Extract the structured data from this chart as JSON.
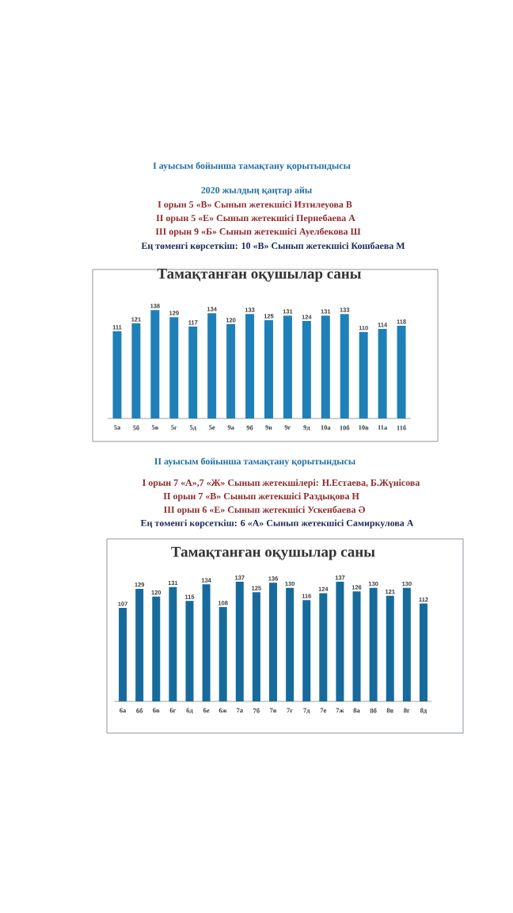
{
  "chart_data": [
    {
      "type": "bar",
      "title": "Тамақтанған оқушылар саны",
      "annotations": [
        "I ауысым бойынша тамақтану қорытындысы",
        "2020 жылдың қаңтар айы",
        "I орын 5 «В» Сынып жетекшісі Изтилеуова В",
        "II орын 5 «Е» Сынып жетекшісі Пернебаева А",
        "III орын 9 «Б» Сынып жетекшісі Ауелбекова Ш",
        "Ең төменгі көрсеткіш: 10 «В» Сынып жетекшісі Кошбаева М"
      ],
      "categories": [
        "5а",
        "5б",
        "5в",
        "5г",
        "5д",
        "5е",
        "9а",
        "9б",
        "9в",
        "9г",
        "9д",
        "10а",
        "10б",
        "10в",
        "11а",
        "11б"
      ],
      "values": [
        111,
        121,
        138,
        129,
        117,
        134,
        120,
        133,
        125,
        131,
        124,
        131,
        133,
        110,
        114,
        118
      ],
      "color": "#1f80b8",
      "data_labels": true,
      "tick_labels": "x"
    },
    {
      "type": "bar",
      "title": "Тамақтанған оқушылар саны",
      "annotations": [
        "II ауысым бойынша тамақтану қорытындысы",
        "I орын 7 «А»,7 «Ж» Сынып жетекшілері: Н.Естаева, Б.Жүнісова",
        "II орын 7 «В» Сынып жетекшісі Раздықова Н",
        "III орын 6 «Е» Сынып жетекшісі Ускенбаева Ә",
        "Ең төменгі көрсеткіш: 6 «А» Сынып жетекшісі Самиркулова А"
      ],
      "categories": [
        "6а",
        "6б",
        "6в",
        "6г",
        "6д",
        "6е",
        "6ж",
        "7а",
        "7б",
        "7в",
        "7г",
        "7д",
        "7е",
        "7ж",
        "8а",
        "8б",
        "8в",
        "8г",
        "8д"
      ],
      "values": [
        107,
        129,
        120,
        131,
        115,
        134,
        108,
        137,
        125,
        136,
        130,
        116,
        124,
        137,
        126,
        130,
        121,
        130,
        112
      ],
      "color": "#166b9c",
      "data_labels": true,
      "tick_labels": "x"
    }
  ]
}
